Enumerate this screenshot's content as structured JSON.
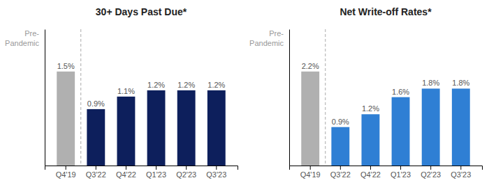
{
  "chart_data": [
    {
      "type": "bar",
      "title": "30+ Days Past Due*",
      "categories": [
        "Q4'19",
        "Q3'22",
        "Q4'22",
        "Q1'23",
        "Q2'23",
        "Q3'23"
      ],
      "values": [
        1.5,
        0.9,
        1.1,
        1.2,
        1.2,
        1.2
      ],
      "value_labels": [
        "1.5%",
        "0.9%",
        "1.1%",
        "1.2%",
        "1.2%",
        "1.2%"
      ],
      "colors": [
        "#b0b0b0",
        "#0d1f5c",
        "#0d1f5c",
        "#0d1f5c",
        "#0d1f5c",
        "#0d1f5c"
      ],
      "ylim": [
        0,
        2.175
      ],
      "data_labels": true,
      "tick_labels": "x",
      "annotations": [
        "Pre-\nPandemic"
      ]
    },
    {
      "type": "bar",
      "title": "Net Write-off Rates*",
      "categories": [
        "Q4'19",
        "Q3'22",
        "Q4'22",
        "Q1'23",
        "Q2'23",
        "Q3'23"
      ],
      "values": [
        2.2,
        0.9,
        1.2,
        1.6,
        1.8,
        1.8
      ],
      "value_labels": [
        "2.2%",
        "0.9%",
        "1.2%",
        "1.6%",
        "1.8%",
        "1.8%"
      ],
      "colors": [
        "#b0b0b0",
        "#2f7fd4",
        "#2f7fd4",
        "#2f7fd4",
        "#2f7fd4",
        "#2f7fd4"
      ],
      "ylim": [
        0,
        3.19
      ],
      "data_labels": true,
      "tick_labels": "x",
      "annotations": [
        "Pre-\nPandemic"
      ]
    }
  ]
}
